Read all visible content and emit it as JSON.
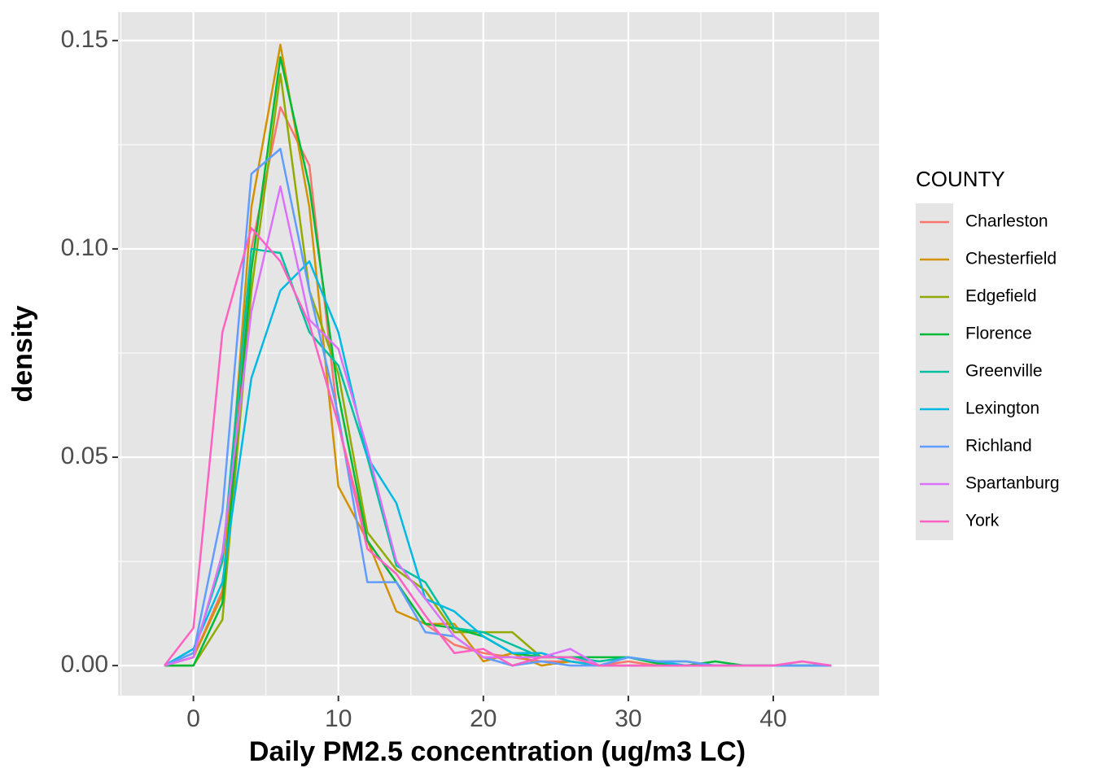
{
  "chart_data": {
    "type": "line",
    "x_label": "Daily PM2.5 concentration (ug/m3 LC)",
    "y_label": "density",
    "legend_title": "COUNTY",
    "legend_position": "right",
    "grid": true,
    "x": [
      -2,
      0,
      2,
      4,
      6,
      8,
      10,
      12,
      14,
      16,
      18,
      20,
      22,
      24,
      26,
      28,
      30,
      32,
      34,
      36,
      38,
      40,
      42,
      44
    ],
    "xlim": [
      -5.2,
      47.3
    ],
    "xticks": [
      0,
      10,
      20,
      30,
      40
    ],
    "ylim": [
      -0.0072,
      0.1568
    ],
    "yticks": [
      {
        "value": 0,
        "label": "0.00"
      },
      {
        "value": 0.05,
        "label": "0.05"
      },
      {
        "value": 0.1,
        "label": "0.10"
      },
      {
        "value": 0.15,
        "label": "0.15"
      }
    ],
    "series": [
      {
        "name": "Charleston",
        "color": "#F8766D",
        "values": [
          0,
          0.002,
          0.018,
          0.1,
          0.134,
          0.12,
          0.058,
          0.03,
          0.02,
          0.01,
          0.005,
          0.003,
          0.002,
          0.001,
          0.001,
          0,
          0.001,
          0,
          0,
          0,
          0,
          0,
          0,
          0
        ]
      },
      {
        "name": "Chesterfield",
        "color": "#D39200",
        "values": [
          0,
          0.002,
          0.017,
          0.11,
          0.149,
          0.11,
          0.043,
          0.03,
          0.013,
          0.01,
          0.01,
          0.001,
          0.003,
          0,
          0.001,
          0,
          0,
          0,
          0,
          0,
          0,
          0,
          0,
          0
        ]
      },
      {
        "name": "Edgefield",
        "color": "#93AA00",
        "values": [
          0,
          0,
          0.011,
          0.09,
          0.142,
          0.09,
          0.07,
          0.032,
          0.023,
          0.018,
          0.008,
          0.008,
          0.008,
          0.002,
          0.002,
          0,
          0,
          0,
          0,
          0,
          0,
          0,
          0,
          0
        ]
      },
      {
        "name": "Florence",
        "color": "#00BA38",
        "values": [
          0,
          0,
          0.015,
          0.095,
          0.146,
          0.115,
          0.065,
          0.03,
          0.02,
          0.01,
          0.009,
          0.007,
          0.003,
          0.002,
          0.002,
          0.002,
          0.002,
          0.0005,
          0,
          0.001,
          0,
          0,
          0,
          0
        ]
      },
      {
        "name": "Greenville",
        "color": "#00C19F",
        "values": [
          0,
          0.003,
          0.025,
          0.1,
          0.099,
          0.08,
          0.072,
          0.05,
          0.024,
          0.02,
          0.009,
          0.008,
          0.005,
          0.002,
          0.002,
          0.001,
          0.002,
          0.001,
          0.001,
          0,
          0,
          0,
          0,
          0
        ]
      },
      {
        "name": "Lexington",
        "color": "#00B9E3",
        "values": [
          0,
          0.004,
          0.02,
          0.069,
          0.09,
          0.097,
          0.08,
          0.05,
          0.039,
          0.016,
          0.013,
          0.007,
          0.003,
          0.003,
          0.001,
          0,
          0.002,
          0.001,
          0,
          0,
          0,
          0,
          0,
          0
        ]
      },
      {
        "name": "Richland",
        "color": "#619CFF",
        "values": [
          0,
          0.003,
          0.037,
          0.118,
          0.124,
          0.09,
          0.06,
          0.02,
          0.02,
          0.008,
          0.007,
          0.002,
          0,
          0.001,
          0,
          0,
          0.002,
          0.001,
          0.001,
          0,
          0,
          0,
          0,
          0
        ]
      },
      {
        "name": "Spartanburg",
        "color": "#DB72FB",
        "values": [
          0,
          0.002,
          0.027,
          0.085,
          0.115,
          0.083,
          0.076,
          0.052,
          0.025,
          0.016,
          0.007,
          0.002,
          0.002,
          0.002,
          0.004,
          0,
          0,
          0,
          0,
          0,
          0,
          0,
          0.001,
          0
        ]
      },
      {
        "name": "York",
        "color": "#FF61C3",
        "values": [
          0,
          0.009,
          0.08,
          0.105,
          0.097,
          0.082,
          0.058,
          0.028,
          0.022,
          0.012,
          0.003,
          0.004,
          0,
          0.002,
          0.002,
          0,
          0,
          0,
          0,
          0,
          0,
          0,
          0.001,
          0
        ]
      }
    ]
  }
}
